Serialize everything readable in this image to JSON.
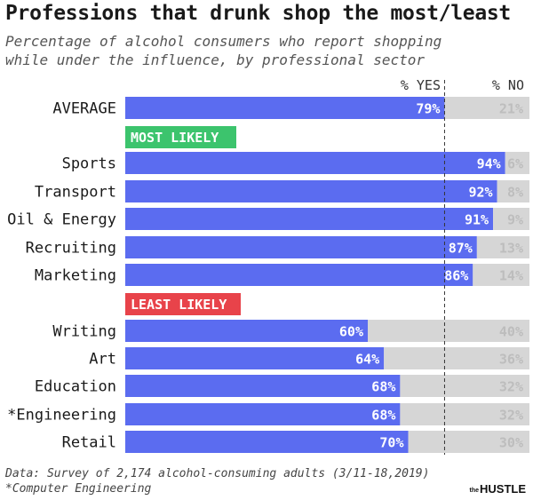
{
  "title": "Professions that drunk shop the most/least",
  "subtitle": [
    "Percentage of alcohol consumers who report shopping",
    "while under the influence, by professional sector"
  ],
  "footer": {
    "source": "Data: Survey of 2,174 alcohol-consuming adults (3/11-18,2019)",
    "note": "*Computer Engineering"
  },
  "logo": {
    "prefix": "the",
    "name": "HUSTLE"
  },
  "colors": {
    "yes": "#5b6cf0",
    "no": "#d6d6d6",
    "most_badge": "#3cc46d",
    "least_badge": "#e8434a"
  },
  "chart_data": {
    "type": "bar",
    "orientation": "horizontal",
    "stacked": true,
    "xlim": [
      0,
      100
    ],
    "unit": "%",
    "series": [
      {
        "name": "% YES"
      },
      {
        "name": "% NO"
      }
    ],
    "average": {
      "category": "AVERAGE",
      "yes": 79,
      "no": 21
    },
    "groups": [
      {
        "label": "MOST LIKELY",
        "rows": [
          {
            "category": "Sports",
            "yes": 94,
            "no": 6
          },
          {
            "category": "Transport",
            "yes": 92,
            "no": 8
          },
          {
            "category": "Oil & Energy",
            "yes": 91,
            "no": 9
          },
          {
            "category": "Recruiting",
            "yes": 87,
            "no": 13
          },
          {
            "category": "Marketing",
            "yes": 86,
            "no": 14
          }
        ]
      },
      {
        "label": "LEAST LIKELY",
        "rows": [
          {
            "category": "Writing",
            "yes": 60,
            "no": 40
          },
          {
            "category": "Art",
            "yes": 64,
            "no": 36
          },
          {
            "category": "Education",
            "yes": 68,
            "no": 32
          },
          {
            "category": "*Engineering",
            "yes": 68,
            "no": 32
          },
          {
            "category": "Retail",
            "yes": 70,
            "no": 30
          }
        ]
      }
    ],
    "reference_line": {
      "value": 79,
      "style": "dashed"
    }
  }
}
